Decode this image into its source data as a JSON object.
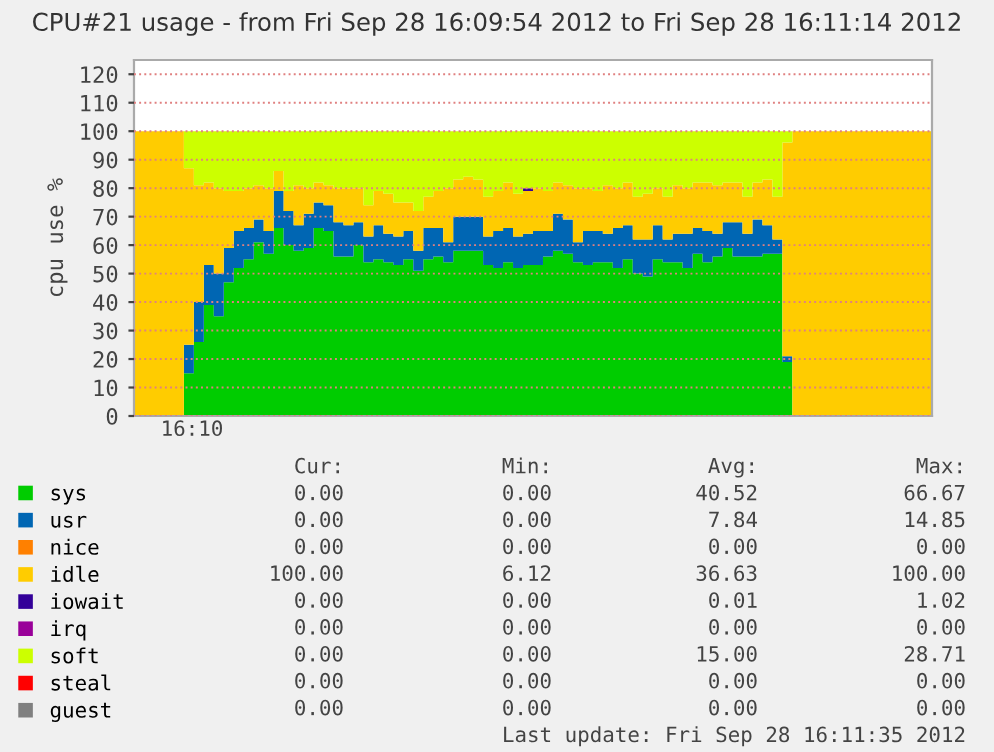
{
  "chart_data": {
    "type": "area",
    "stacked": true,
    "title": "CPU#21 usage - from Fri Sep 28 16:09:54 2012 to Fri Sep 28 16:11:14 2012",
    "ylabel": "cpu use %",
    "categories": [
      null,
      null,
      null,
      null,
      null,
      null,
      null,
      null,
      null,
      null,
      null,
      null,
      null,
      null,
      null,
      null,
      null,
      null,
      null,
      null,
      null,
      null,
      null,
      null,
      null,
      null,
      null,
      null,
      null,
      null,
      null,
      null,
      null,
      null,
      null,
      null,
      null,
      null,
      null,
      null,
      null,
      null,
      null,
      null,
      null,
      null,
      null,
      null,
      null,
      null,
      null,
      null,
      null,
      null,
      null,
      null,
      null,
      null,
      null,
      null,
      null,
      null,
      null,
      null,
      null,
      null,
      null,
      null,
      null,
      null,
      null,
      null,
      null,
      null,
      null,
      null,
      null,
      null,
      null,
      null,
      null
    ],
    "series": [
      {
        "name": "sys",
        "color": "#00cc00",
        "values": [
          0,
          0,
          0,
          0,
          0,
          15,
          26,
          39,
          35,
          47,
          52,
          55,
          61,
          57,
          66,
          60,
          58,
          59,
          66,
          65,
          56,
          56,
          60,
          54,
          55,
          54,
          53,
          55,
          51,
          55,
          56,
          54,
          58,
          58,
          58,
          53,
          52,
          54,
          52,
          53,
          53,
          56,
          58,
          57,
          54,
          53,
          54,
          54,
          52,
          55,
          50,
          49,
          55,
          54,
          54,
          52,
          57,
          54,
          56,
          59,
          56,
          56,
          56,
          57,
          57,
          19,
          0,
          0,
          0,
          0,
          0,
          0,
          0,
          0,
          0,
          0,
          0,
          0,
          0,
          0,
          0
        ]
      },
      {
        "name": "usr",
        "color": "#0066b3",
        "values": [
          0,
          0,
          0,
          0,
          0,
          10,
          14,
          14,
          15,
          12,
          13,
          11,
          8,
          8,
          13,
          12,
          9,
          12,
          9,
          9,
          12,
          11,
          8,
          9,
          12,
          10,
          10,
          10,
          7,
          11,
          10,
          7,
          12,
          12,
          12,
          10,
          13,
          12,
          11,
          11,
          12,
          9,
          13,
          12,
          7,
          12,
          11,
          10,
          14,
          12,
          12,
          13,
          12,
          8,
          10,
          12,
          9,
          11,
          8,
          9,
          12,
          8,
          13,
          10,
          5,
          2,
          0,
          0,
          0,
          0,
          0,
          0,
          0,
          0,
          0,
          0,
          0,
          0,
          0,
          0,
          0
        ]
      },
      {
        "name": "nice",
        "color": "#ff8000",
        "values": [
          null,
          null,
          null,
          null,
          null,
          null,
          null,
          null,
          null,
          null,
          null,
          null,
          null,
          null,
          null,
          null,
          null,
          null,
          null,
          null,
          null,
          null,
          null,
          null,
          null,
          null,
          null,
          null,
          null,
          null,
          null,
          null,
          null,
          null,
          null,
          null,
          null,
          null,
          null,
          null,
          null,
          null,
          null,
          null,
          null,
          null,
          null,
          null,
          null,
          null,
          null,
          null,
          null,
          null,
          null,
          null,
          null,
          null,
          null,
          null,
          null,
          null,
          null,
          null,
          null,
          null,
          null,
          null,
          null,
          null,
          null,
          null,
          null,
          null,
          null,
          null,
          null,
          null,
          null,
          null,
          null
        ]
      },
      {
        "name": "idle",
        "color": "#ffcc00",
        "values": [
          100,
          100,
          100,
          100,
          100,
          62,
          41,
          29,
          30,
          20,
          14,
          14,
          12,
          15,
          7,
          7,
          14,
          9,
          7,
          7,
          12,
          13,
          12,
          11,
          12,
          14,
          12,
          10,
          14,
          11,
          13,
          19,
          13,
          14,
          13,
          14,
          14,
          16,
          15,
          15,
          15,
          14,
          11,
          12,
          19,
          15,
          14,
          17,
          14,
          15,
          15,
          16,
          13,
          15,
          17,
          16,
          16,
          17,
          17,
          14,
          14,
          13,
          13,
          16,
          15,
          75,
          100,
          100,
          100,
          100,
          100,
          100,
          100,
          100,
          100,
          100,
          100,
          100,
          100,
          100,
          100
        ]
      },
      {
        "name": "iowait",
        "color": "#330099",
        "values": [
          null,
          null,
          null,
          null,
          null,
          null,
          null,
          null,
          null,
          null,
          null,
          null,
          null,
          null,
          null,
          null,
          null,
          null,
          null,
          null,
          null,
          null,
          null,
          null,
          null,
          null,
          null,
          null,
          null,
          null,
          null,
          null,
          null,
          null,
          null,
          null,
          null,
          null,
          0,
          1,
          0,
          null,
          null,
          null,
          null,
          null,
          null,
          null,
          null,
          null,
          null,
          null,
          null,
          null,
          null,
          null,
          null,
          null,
          null,
          null,
          null,
          null,
          null,
          null,
          null,
          null,
          null,
          null,
          null,
          null,
          null,
          null,
          null,
          null,
          null,
          null,
          null,
          null,
          null,
          null,
          null
        ]
      },
      {
        "name": "irq",
        "color": "#990099",
        "values": [
          null,
          null,
          null,
          null,
          null,
          null,
          null,
          null,
          null,
          null,
          null,
          null,
          null,
          null,
          null,
          null,
          null,
          null,
          null,
          null,
          null,
          null,
          null,
          null,
          null,
          null,
          null,
          null,
          null,
          null,
          null,
          null,
          null,
          null,
          null,
          null,
          null,
          null,
          null,
          null,
          null,
          null,
          null,
          null,
          null,
          null,
          null,
          null,
          null,
          null,
          null,
          null,
          null,
          null,
          null,
          null,
          null,
          null,
          null,
          null,
          null,
          null,
          null,
          null,
          null,
          null,
          null,
          null,
          null,
          null,
          null,
          null,
          null,
          null,
          null,
          null,
          null,
          null,
          null,
          null,
          null
        ]
      },
      {
        "name": "soft",
        "color": "#ccff00",
        "values": [
          0,
          0,
          0,
          0,
          0,
          13,
          19,
          18,
          20,
          21,
          21,
          20,
          19,
          20,
          14,
          21,
          19,
          20,
          18,
          19,
          20,
          20,
          20,
          26,
          21,
          22,
          25,
          25,
          28,
          23,
          21,
          20,
          17,
          16,
          17,
          23,
          21,
          18,
          22,
          20,
          20,
          21,
          18,
          19,
          20,
          20,
          21,
          19,
          20,
          18,
          23,
          22,
          20,
          23,
          19,
          20,
          18,
          18,
          19,
          18,
          18,
          23,
          18,
          17,
          23,
          4,
          0,
          0,
          0,
          0,
          0,
          0,
          0,
          0,
          0,
          0,
          0,
          0,
          0,
          0,
          0
        ]
      },
      {
        "name": "steal",
        "color": "#ff0000",
        "values": [
          null,
          null,
          null,
          null,
          null,
          null,
          null,
          null,
          null,
          null,
          null,
          null,
          null,
          null,
          null,
          null,
          null,
          null,
          null,
          null,
          null,
          null,
          null,
          null,
          null,
          null,
          null,
          null,
          null,
          null,
          null,
          null,
          null,
          null,
          null,
          null,
          null,
          null,
          null,
          null,
          null,
          null,
          null,
          null,
          null,
          null,
          null,
          null,
          null,
          null,
          null,
          null,
          null,
          null,
          null,
          null,
          null,
          null,
          null,
          null,
          null,
          null,
          null,
          null,
          null,
          null,
          null,
          null,
          null,
          null,
          null,
          null,
          null,
          null,
          null,
          null,
          null,
          null,
          null,
          null,
          null
        ]
      },
      {
        "name": "guest",
        "color": "#808080",
        "values": [
          null,
          null,
          null,
          null,
          null,
          null,
          null,
          null,
          null,
          null,
          null,
          null,
          null,
          null,
          null,
          null,
          null,
          null,
          null,
          null,
          null,
          null,
          null,
          null,
          null,
          null,
          null,
          null,
          null,
          null,
          null,
          null,
          null,
          null,
          null,
          null,
          null,
          null,
          null,
          null,
          null,
          null,
          null,
          null,
          null,
          null,
          null,
          null,
          null,
          null,
          null,
          null,
          null,
          null,
          null,
          null,
          null,
          null,
          null,
          null,
          null,
          null,
          null,
          null,
          null,
          null,
          null,
          null,
          null,
          null,
          null,
          null,
          null,
          null,
          null,
          null,
          null,
          null,
          null,
          null,
          null
        ]
      }
    ],
    "ylim": [
      0,
      125
    ],
    "yticks": [
      0,
      10,
      20,
      30,
      40,
      50,
      60,
      70,
      80,
      90,
      100,
      110,
      120
    ],
    "grid": "y",
    "legend": "bottom",
    "annotations": [
      "16:10",
      "Cur:",
      "Min:",
      "Avg:",
      "Max:",
      "0.00",
      "0.00",
      "40.52",
      "66.67",
      "0.00",
      "0.00",
      "7.84",
      "14.85",
      "0.00",
      "0.00",
      "0.00",
      "0.00",
      "100.00",
      "6.12",
      "36.63",
      "100.00",
      "0.00",
      "0.00",
      "0.01",
      "1.02",
      "0.00",
      "0.00",
      "0.00",
      "0.00",
      "0.00",
      "0.00",
      "15.00",
      "28.71",
      "0.00",
      "0.00",
      "0.00",
      "0.00",
      "0.00",
      "0.00",
      "0.00",
      "0.00",
      "Last update: Fri Sep 28 16:11:35 2012"
    ]
  }
}
